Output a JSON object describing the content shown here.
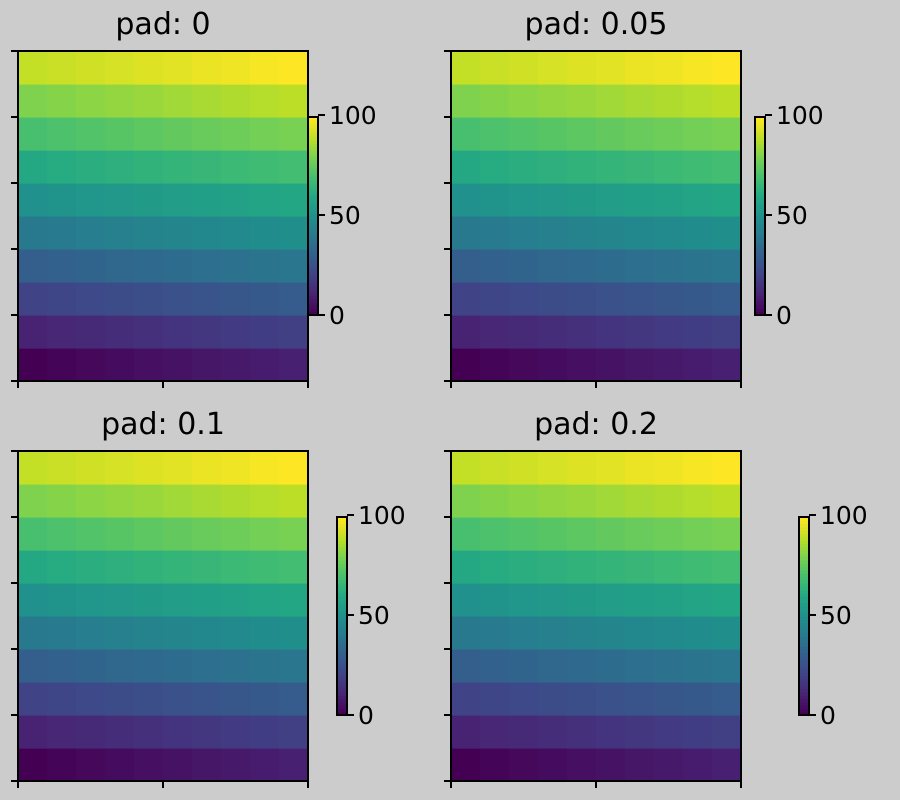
{
  "chart_data": [
    {
      "type": "heatmap",
      "title": "pad: 0",
      "grid": false,
      "rows": 10,
      "cols": 10,
      "values_rule": "value = row * 10 + col, row 0 at bottom",
      "x_ticks": [
        "",
        "",
        ""
      ],
      "y_ticks": [
        "",
        "",
        "",
        "",
        "",
        ""
      ],
      "colorbar": {
        "min": 0,
        "max": 99,
        "ticks": [
          0,
          50,
          100
        ],
        "tick_labels": [
          "0",
          "50",
          "100"
        ],
        "pad": 0
      }
    },
    {
      "type": "heatmap",
      "title": "pad: 0.05",
      "grid": false,
      "rows": 10,
      "cols": 10,
      "values_rule": "value = row * 10 + col, row 0 at bottom",
      "x_ticks": [
        "",
        "",
        ""
      ],
      "y_ticks": [
        "",
        "",
        "",
        "",
        "",
        ""
      ],
      "colorbar": {
        "min": 0,
        "max": 99,
        "ticks": [
          0,
          50,
          100
        ],
        "tick_labels": [
          "0",
          "50",
          "100"
        ],
        "pad": 0.05
      }
    },
    {
      "type": "heatmap",
      "title": "pad: 0.1",
      "grid": false,
      "rows": 10,
      "cols": 10,
      "values_rule": "value = row * 10 + col, row 0 at bottom",
      "x_ticks": [
        "",
        "",
        ""
      ],
      "y_ticks": [
        "",
        "",
        "",
        "",
        "",
        ""
      ],
      "colorbar": {
        "min": 0,
        "max": 99,
        "ticks": [
          0,
          50,
          100
        ],
        "tick_labels": [
          "0",
          "50",
          "100"
        ],
        "pad": 0.1
      }
    },
    {
      "type": "heatmap",
      "title": "pad: 0.2",
      "grid": false,
      "rows": 10,
      "cols": 10,
      "values_rule": "value = row * 10 + col, row 0 at bottom",
      "x_ticks": [
        "",
        "",
        ""
      ],
      "y_ticks": [
        "",
        "",
        "",
        "",
        "",
        ""
      ],
      "colorbar": {
        "min": 0,
        "max": 99,
        "ticks": [
          0,
          50,
          100
        ],
        "tick_labels": [
          "0",
          "50",
          "100"
        ],
        "pad": 0.2
      }
    }
  ],
  "colormap": "viridis",
  "colors": {
    "background": "#cccccc",
    "axis": "#000000"
  }
}
